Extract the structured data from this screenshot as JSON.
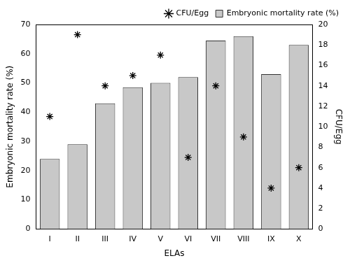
{
  "chart_data": {
    "type": "bar",
    "categories": [
      "I",
      "II",
      "III",
      "IV",
      "V",
      "VI",
      "VII",
      "VIII",
      "IX",
      "X"
    ],
    "x_label": "ELAs",
    "y_label": "Embryonic mortality rate (%)",
    "y2_label": "CFU/Egg",
    "series": [
      {
        "name": "Embryonic mortality rate (%)",
        "type": "bar",
        "color": "#c8c8c8",
        "values": [
          24,
          29,
          43,
          48.5,
          50,
          52,
          64.5,
          66,
          53,
          63
        ]
      },
      {
        "name": "CFU/Egg",
        "type": "scatter",
        "axis": "y2",
        "color": "#000000",
        "marker": "asterisk",
        "values": [
          11,
          19,
          14,
          15,
          17,
          7,
          14,
          9,
          4,
          6
        ]
      }
    ],
    "ylim": [
      0,
      70
    ],
    "yticks": [
      0,
      10,
      20,
      30,
      40,
      50,
      60,
      70
    ],
    "y2lim": [
      0,
      20
    ],
    "y2ticks": [
      0,
      2,
      4,
      6,
      8,
      10,
      12,
      14,
      16,
      18,
      20
    ],
    "grid": false,
    "legend": "top-right"
  }
}
